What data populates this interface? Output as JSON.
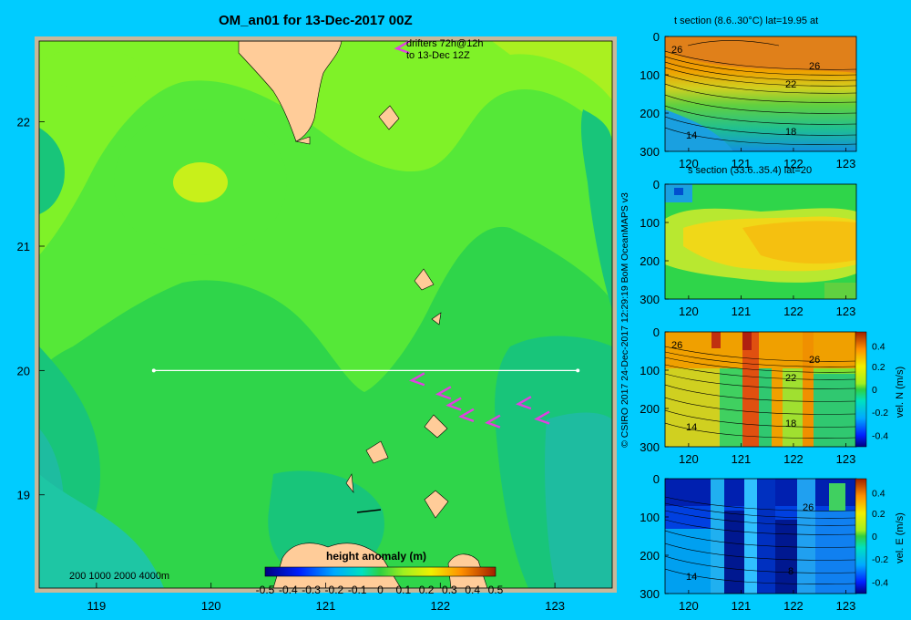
{
  "main_map": {
    "title": "OM_an01 for 13-Dec-2017 00Z",
    "x_ticks": [
      "119",
      "120",
      "121",
      "122",
      "123"
    ],
    "y_ticks": [
      "22",
      "21",
      "20",
      "19"
    ],
    "drifters_line1": "drifters 72h@12h",
    "drifters_line2": "to 13-Dec 12Z",
    "depth_legend": "200  1000  2000  4000m",
    "colorbar_title": "height anomaly (m)",
    "colorbar_ticks": [
      "-0.5",
      "-0.4",
      "-0.3",
      "-0.2",
      "-0.1",
      "0",
      "0.1",
      "0.2",
      "0.3",
      "0.4",
      "0.5"
    ],
    "section_line": {
      "lon_start": 119.5,
      "lon_end": 123.2,
      "lat": 20
    },
    "drifter_arrows": [
      {
        "lon": 121.75,
        "lat": 19.92
      },
      {
        "lon": 121.98,
        "lat": 19.81
      },
      {
        "lon": 122.07,
        "lat": 19.72
      },
      {
        "lon": 122.18,
        "lat": 19.63
      },
      {
        "lon": 122.41,
        "lat": 19.58
      },
      {
        "lon": 122.68,
        "lat": 19.73
      },
      {
        "lon": 122.84,
        "lat": 19.61
      },
      {
        "lon": 121.62,
        "lat": 22.59
      }
    ],
    "colors": {
      "land": "#ffcc99",
      "background": "#00ccff",
      "frame": "#c8b89a"
    }
  },
  "credit": "© CSIRO 2017   24-Dec-2017 12:29:19 BoM OceanMAPS v3",
  "sections": [
    {
      "id": "t-section",
      "title": "t section (8.6..30°C) lat=19.95 at",
      "x_ticks": [
        "120",
        "121",
        "122",
        "123"
      ],
      "y_ticks": [
        "0",
        "100",
        "200",
        "300"
      ],
      "contour_labels": [
        "26",
        "26",
        "22",
        "18",
        "14"
      ]
    },
    {
      "id": "s-section",
      "title": "s section (33.6..35.4) lat=20",
      "x_ticks": [
        "120",
        "121",
        "122",
        "123"
      ],
      "y_ticks": [
        "0",
        "100",
        "200",
        "300"
      ],
      "contour_labels": []
    },
    {
      "id": "vn-section",
      "title": "",
      "x_ticks": [
        "120",
        "121",
        "122",
        "123"
      ],
      "y_ticks": [
        "0",
        "100",
        "200",
        "300"
      ],
      "contour_labels": [
        "26",
        "26",
        "22",
        "18",
        "14"
      ],
      "colorbar_label": "vel. N (m/s)",
      "colorbar_ticks": [
        "0.4",
        "0.2",
        "0",
        "-0.2",
        "-0.4"
      ]
    },
    {
      "id": "ve-section",
      "title": "",
      "x_ticks": [
        "120",
        "121",
        "122",
        "123"
      ],
      "y_ticks": [
        "0",
        "100",
        "200",
        "300"
      ],
      "contour_labels": [
        "26",
        "14",
        "8"
      ],
      "colorbar_label": "vel. E (m/s)",
      "colorbar_ticks": [
        "0.4",
        "0.2",
        "0",
        "-0.2",
        "-0.4"
      ]
    }
  ]
}
